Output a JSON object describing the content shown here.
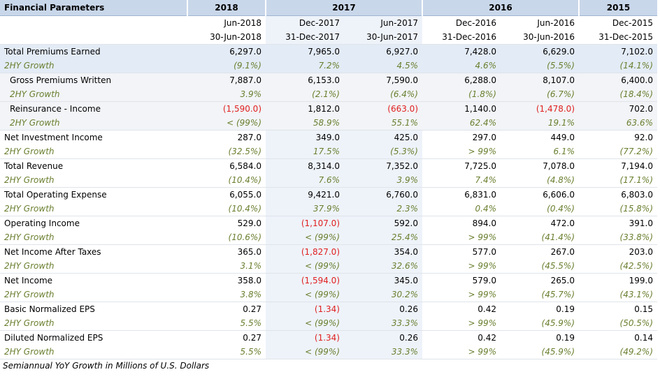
{
  "header": {
    "title": "Financial Parameters",
    "years": [
      {
        "label": "2018",
        "span": 1
      },
      {
        "label": "2017",
        "span": 2
      },
      {
        "label": "2016",
        "span": 2
      },
      {
        "label": "2015",
        "span": 1
      }
    ],
    "periods": [
      "Jun-2018",
      "Dec-2017",
      "Jun-2017",
      "Dec-2016",
      "Jun-2016",
      "Dec-2015"
    ],
    "dates": [
      "30-Jun-2018",
      "31-Dec-2017",
      "30-Jun-2017",
      "31-Dec-2016",
      "30-Jun-2016",
      "31-Dec-2015"
    ]
  },
  "rows": [
    {
      "label": "Total Premiums Earned",
      "kind": "value",
      "style": "hl",
      "values": [
        "6,297.0",
        "7,965.0",
        "6,927.0",
        "7,428.0",
        "6,629.0",
        "7,102.0"
      ]
    },
    {
      "label": "2HY Growth",
      "kind": "growth",
      "style": "hl",
      "values": [
        "(9.1%)",
        "7.2%",
        "4.5%",
        "4.6%",
        "(5.5%)",
        "(14.1%)"
      ]
    },
    {
      "label": "Gross Premiums Written",
      "kind": "value",
      "style": "sub",
      "indent": true,
      "values": [
        "7,887.0",
        "6,153.0",
        "7,590.0",
        "6,288.0",
        "8,107.0",
        "6,400.0"
      ]
    },
    {
      "label": "2HY Growth",
      "kind": "growth",
      "style": "sub",
      "indent": true,
      "values": [
        "3.9%",
        "(2.1%)",
        "(6.4%)",
        "(1.8%)",
        "(6.7%)",
        "(18.4%)"
      ]
    },
    {
      "label": "Reinsurance - Income",
      "kind": "value",
      "style": "sub",
      "indent": true,
      "values": [
        "(1,590.0)",
        "1,812.0",
        "(663.0)",
        "1,140.0",
        "(1,478.0)",
        "702.0"
      ],
      "neg": [
        true,
        false,
        true,
        false,
        true,
        false
      ]
    },
    {
      "label": "2HY Growth",
      "kind": "growth",
      "style": "sub",
      "indent": true,
      "values": [
        "< (99%)",
        "58.9%",
        "55.1%",
        "62.4%",
        "19.1%",
        "63.6%"
      ]
    },
    {
      "label": "Net Investment Income",
      "kind": "value",
      "values": [
        "287.0",
        "349.0",
        "425.0",
        "297.0",
        "449.0",
        "92.0"
      ]
    },
    {
      "label": "2HY Growth",
      "kind": "growth",
      "values": [
        "(32.5%)",
        "17.5%",
        "(5.3%)",
        "> 99%",
        "6.1%",
        "(77.2%)"
      ]
    },
    {
      "label": "Total Revenue",
      "kind": "value",
      "values": [
        "6,584.0",
        "8,314.0",
        "7,352.0",
        "7,725.0",
        "7,078.0",
        "7,194.0"
      ]
    },
    {
      "label": "2HY Growth",
      "kind": "growth",
      "values": [
        "(10.4%)",
        "7.6%",
        "3.9%",
        "7.4%",
        "(4.8%)",
        "(17.1%)"
      ]
    },
    {
      "label": "Total Operating Expense",
      "kind": "value",
      "values": [
        "6,055.0",
        "9,421.0",
        "6,760.0",
        "6,831.0",
        "6,606.0",
        "6,803.0"
      ]
    },
    {
      "label": "2HY Growth",
      "kind": "growth",
      "values": [
        "(10.4%)",
        "37.9%",
        "2.3%",
        "0.4%",
        "(0.4%)",
        "(15.8%)"
      ]
    },
    {
      "label": "Operating Income",
      "kind": "value",
      "values": [
        "529.0",
        "(1,107.0)",
        "592.0",
        "894.0",
        "472.0",
        "391.0"
      ],
      "neg": [
        false,
        true,
        false,
        false,
        false,
        false
      ]
    },
    {
      "label": "2HY Growth",
      "kind": "growth",
      "values": [
        "(10.6%)",
        "< (99%)",
        "25.4%",
        "> 99%",
        "(41.4%)",
        "(33.8%)"
      ]
    },
    {
      "label": "Net Income After Taxes",
      "kind": "value",
      "values": [
        "365.0",
        "(1,827.0)",
        "354.0",
        "577.0",
        "267.0",
        "203.0"
      ],
      "neg": [
        false,
        true,
        false,
        false,
        false,
        false
      ]
    },
    {
      "label": "2HY Growth",
      "kind": "growth",
      "values": [
        "3.1%",
        "< (99%)",
        "32.6%",
        "> 99%",
        "(45.5%)",
        "(42.5%)"
      ]
    },
    {
      "label": "Net Income",
      "kind": "value",
      "values": [
        "358.0",
        "(1,594.0)",
        "345.0",
        "579.0",
        "265.0",
        "199.0"
      ],
      "neg": [
        false,
        true,
        false,
        false,
        false,
        false
      ]
    },
    {
      "label": "2HY Growth",
      "kind": "growth",
      "values": [
        "3.8%",
        "< (99%)",
        "30.2%",
        "> 99%",
        "(45.7%)",
        "(43.1%)"
      ]
    },
    {
      "label": "Basic Normalized EPS",
      "kind": "value",
      "values": [
        "0.27",
        "(1.34)",
        "0.26",
        "0.42",
        "0.19",
        "0.15"
      ],
      "neg": [
        false,
        true,
        false,
        false,
        false,
        false
      ]
    },
    {
      "label": "2HY Growth",
      "kind": "growth",
      "values": [
        "5.5%",
        "< (99%)",
        "33.3%",
        "> 99%",
        "(45.9%)",
        "(50.5%)"
      ]
    },
    {
      "label": "Diluted Normalized EPS",
      "kind": "value",
      "values": [
        "0.27",
        "(1.34)",
        "0.26",
        "0.42",
        "0.19",
        "0.14"
      ],
      "neg": [
        false,
        true,
        false,
        false,
        false,
        false
      ]
    },
    {
      "label": "2HY Growth",
      "kind": "growth",
      "values": [
        "5.5%",
        "< (99%)",
        "33.3%",
        "> 99%",
        "(45.9%)",
        "(49.2%)"
      ]
    }
  ],
  "footnote": "Semiannual YoY Growth in Millions of U.S. Dollars",
  "colors": {
    "header_bg": "#c9d7ea",
    "negative": "#e02020",
    "growth": "#6a7f2f",
    "highlight_bg": "#e3ebf6"
  }
}
